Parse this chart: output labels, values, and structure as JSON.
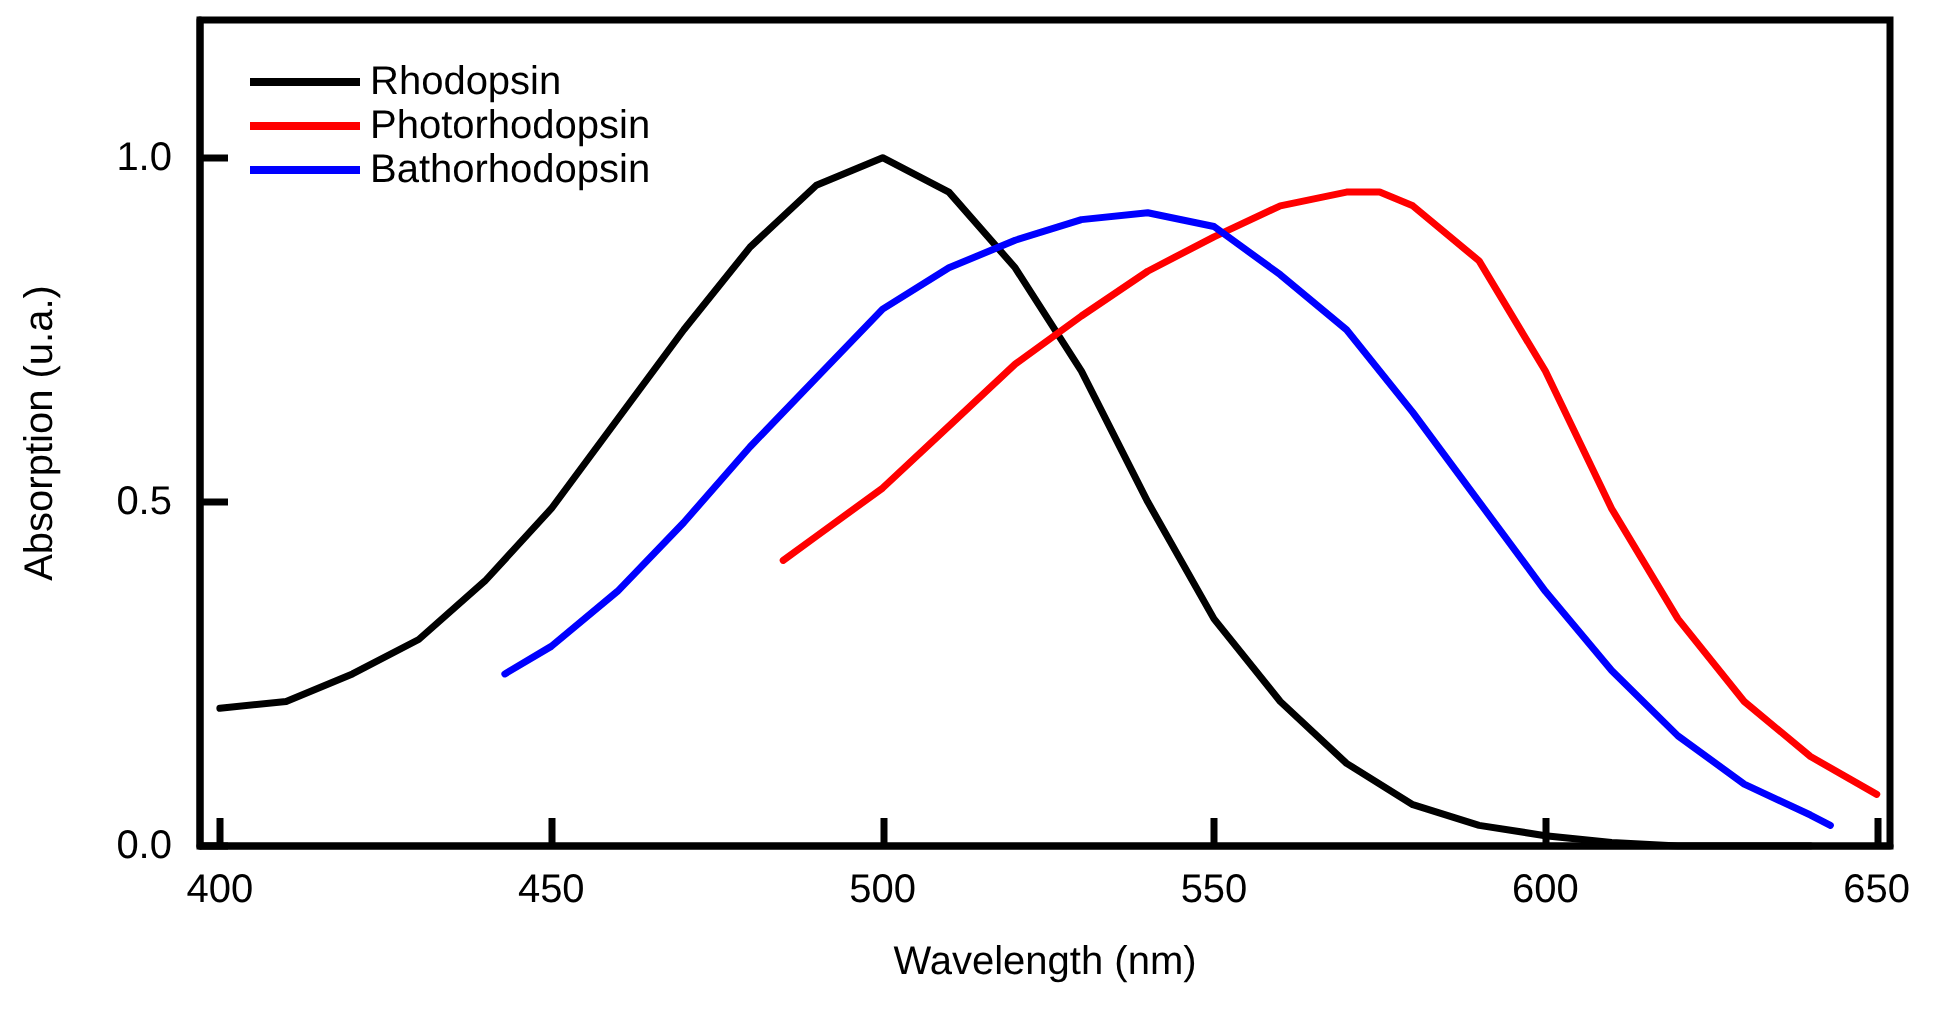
{
  "chart_data": {
    "type": "line",
    "xlabel": "Wavelength (nm)",
    "ylabel": "Absorption (u.a.)",
    "xlim": [
      397,
      652
    ],
    "ylim": [
      0,
      1.2
    ],
    "xticks": [
      400,
      450,
      500,
      550,
      600,
      650
    ],
    "yticks": [
      {
        "value": 0,
        "label": "0.0"
      },
      {
        "value": 0.5,
        "label": "0.5"
      },
      {
        "value": 1,
        "label": "1.0"
      }
    ],
    "grid": false,
    "legend": "top left",
    "marker": "none",
    "line_style": "solid",
    "series": [
      {
        "name": "Rhodopsin",
        "color": "#000000",
        "x": [
          400,
          410,
          420,
          430,
          440,
          450,
          460,
          470,
          480,
          490,
          500,
          510,
          520,
          530,
          540,
          550,
          560,
          570,
          580,
          590,
          600,
          610,
          620,
          640
        ],
        "values": [
          0.2,
          0.21,
          0.25,
          0.3,
          0.385,
          0.49,
          0.62,
          0.75,
          0.87,
          0.96,
          1.0,
          0.95,
          0.84,
          0.69,
          0.5,
          0.33,
          0.21,
          0.12,
          0.06,
          0.03,
          0.015,
          0.005,
          0.0,
          0.0
        ]
      },
      {
        "name": "Photorhodopsin",
        "color": "#ff0000",
        "x": [
          485,
          490,
          500,
          510,
          520,
          530,
          540,
          550,
          560,
          570,
          575,
          580,
          590,
          600,
          610,
          620,
          630,
          640,
          650
        ],
        "values": [
          0.415,
          0.45,
          0.52,
          0.61,
          0.7,
          0.77,
          0.835,
          0.885,
          0.93,
          0.95,
          0.95,
          0.93,
          0.85,
          0.69,
          0.49,
          0.33,
          0.21,
          0.13,
          0.075
        ]
      },
      {
        "name": "Bathorhodopsin",
        "color": "#0000ff",
        "x": [
          443,
          450,
          460,
          470,
          480,
          490,
          500,
          510,
          520,
          530,
          540,
          550,
          560,
          570,
          580,
          590,
          600,
          610,
          620,
          630,
          640,
          643
        ],
        "values": [
          0.25,
          0.29,
          0.37,
          0.47,
          0.58,
          0.68,
          0.78,
          0.84,
          0.88,
          0.91,
          0.92,
          0.9,
          0.83,
          0.75,
          0.63,
          0.5,
          0.37,
          0.255,
          0.16,
          0.09,
          0.045,
          0.03
        ]
      }
    ]
  }
}
